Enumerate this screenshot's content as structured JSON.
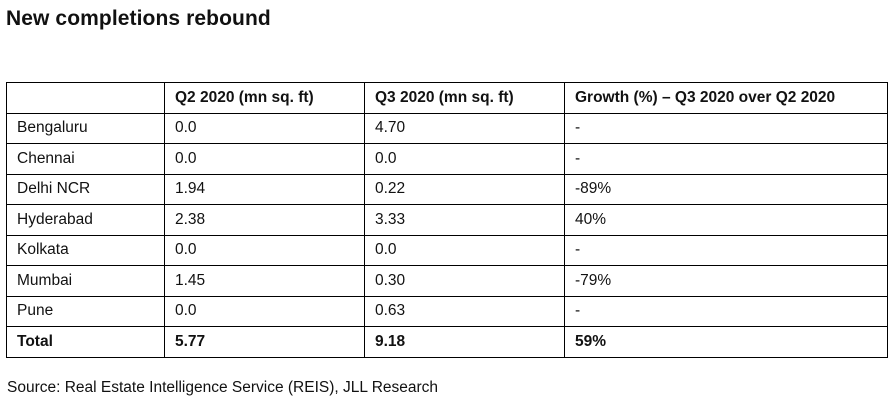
{
  "title": "New completions rebound",
  "table": {
    "headers": [
      "",
      "Q2 2020 (mn sq. ft)",
      "Q3 2020 (mn sq. ft)",
      "Growth (%) – Q3 2020 over Q2 2020"
    ],
    "rows": [
      [
        "Bengaluru",
        "0.0",
        "4.70",
        "-"
      ],
      [
        "Chennai",
        "0.0",
        "0.0",
        "-"
      ],
      [
        "Delhi NCR",
        "1.94",
        "0.22",
        "-89%"
      ],
      [
        "Hyderabad",
        "2.38",
        "3.33",
        "40%"
      ],
      [
        "Kolkata",
        "0.0",
        "0.0",
        "-"
      ],
      [
        "Mumbai",
        "1.45",
        "0.30",
        "-79%"
      ],
      [
        "Pune",
        "0.0",
        "0.63",
        "-"
      ]
    ],
    "total": [
      "Total",
      "5.77",
      "9.18",
      "59%"
    ]
  },
  "source": "Source: Real Estate Intelligence Service (REIS), JLL Research"
}
